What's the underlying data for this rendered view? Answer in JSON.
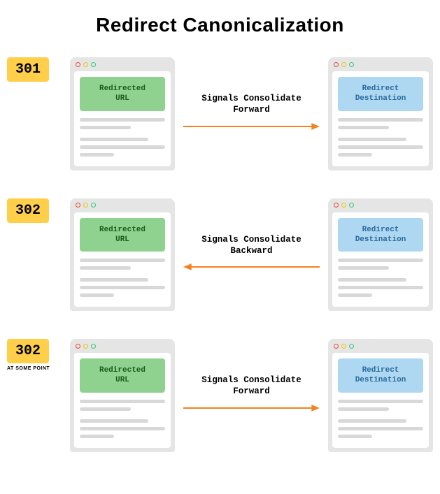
{
  "title": "Redirect Canonicalization",
  "colors": {
    "badge_bg": "#ffcf4a",
    "green_box": "#8fd18f",
    "blue_box": "#aed8f2",
    "arrow": "#f58220",
    "browser_bg": "#e5e5e5",
    "line": "#d8d8d8"
  },
  "rows": [
    {
      "code": "301",
      "sub": "",
      "left_box": "Redirected URL",
      "right_box": "Redirect Destination",
      "arrow_label": "Signals Consolidate Forward",
      "direction": "right"
    },
    {
      "code": "302",
      "sub": "",
      "left_box": "Redirected URL",
      "right_box": "Redirect Destination",
      "arrow_label": "Signals Consolidate Backward",
      "direction": "left"
    },
    {
      "code": "302",
      "sub": "AT SOME POINT",
      "left_box": "Redirected URL",
      "right_box": "Redirect Destination",
      "arrow_label": "Signals Consolidate Forward",
      "direction": "right"
    }
  ]
}
